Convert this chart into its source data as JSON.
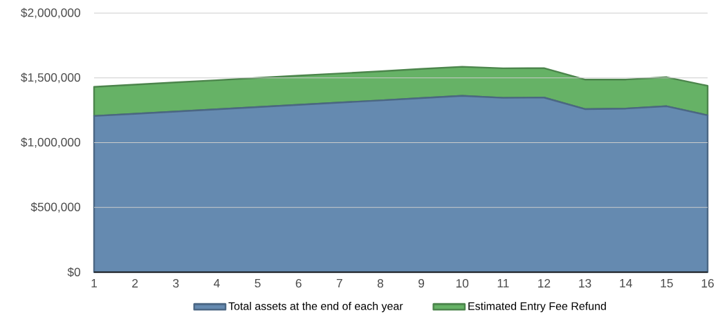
{
  "chart_data": {
    "type": "area",
    "stacked": true,
    "categories": [
      "1",
      "2",
      "3",
      "4",
      "5",
      "6",
      "7",
      "8",
      "9",
      "10",
      "11",
      "12",
      "13",
      "14",
      "15",
      "16"
    ],
    "series": [
      {
        "name": "Total assets at the end of each year",
        "color": "#658ab0",
        "values": [
          1206000,
          1223000,
          1240000,
          1257000,
          1275000,
          1292000,
          1309000,
          1326000,
          1344000,
          1361000,
          1346000,
          1348000,
          1259000,
          1263000,
          1281000,
          1211000
        ]
      },
      {
        "name": "Estimated Entry Fee Refund",
        "color": "#66b266",
        "values": [
          225000,
          225000,
          225000,
          225000,
          225000,
          225000,
          225000,
          225000,
          225000,
          225000,
          228000,
          227000,
          228000,
          224000,
          224000,
          228000
        ]
      }
    ],
    "ylim": [
      0,
      2000000
    ],
    "yticks": [
      {
        "value": 0,
        "label": "$0"
      },
      {
        "value": 500000,
        "label": "$500,000"
      },
      {
        "value": 1000000,
        "label": "$1,000,000"
      },
      {
        "value": 1500000,
        "label": "$1,500,000"
      },
      {
        "value": 2000000,
        "label": "$2,000,000"
      }
    ],
    "grid": "y",
    "legend": "bottom"
  }
}
